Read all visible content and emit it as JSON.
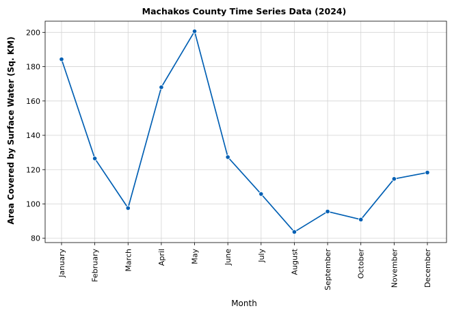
{
  "chart_data": {
    "type": "line",
    "title": "Machakos County Time Series Data (2024)",
    "xlabel": "Month",
    "ylabel": "Area Covered by Surface Water (Sq. KM)",
    "categories": [
      "January",
      "February",
      "March",
      "April",
      "May",
      "June",
      "July",
      "August",
      "September",
      "October",
      "November",
      "December"
    ],
    "series": [
      {
        "values": [
          184.3,
          126.5,
          97.6,
          168.0,
          200.6,
          127.3,
          105.8,
          83.7,
          95.6,
          90.9,
          114.6,
          118.3
        ],
        "color": "#005fb3"
      }
    ],
    "ylim": [
      77.5,
      206.5
    ],
    "yticks": [
      80,
      100,
      120,
      140,
      160,
      180,
      200
    ],
    "grid": true,
    "marker": "circle"
  }
}
